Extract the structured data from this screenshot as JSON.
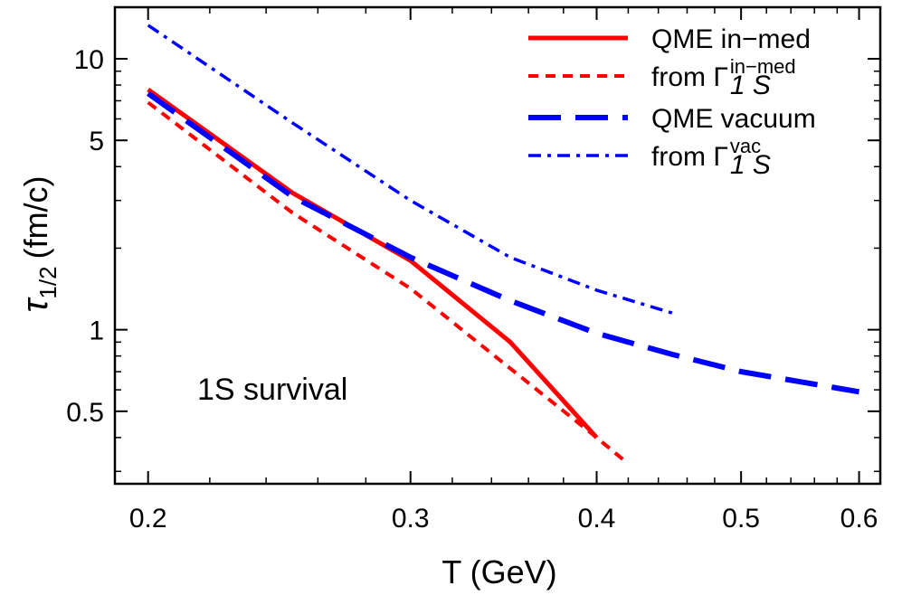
{
  "chart_data": {
    "type": "line",
    "title": "",
    "xlabel": "T (GeV)",
    "ylabel": {
      "symbol": "τ",
      "subscript": "1/2",
      "unit": "(fm/c)"
    },
    "xscale": "log",
    "yscale": "log",
    "xlim": [
      0.19,
      0.62
    ],
    "ylim": [
      0.27,
      15.5
    ],
    "x_ticks": [
      {
        "value": 0.2,
        "label": "0.2"
      },
      {
        "value": 0.3,
        "label": "0.3"
      },
      {
        "value": 0.4,
        "label": "0.4"
      },
      {
        "value": 0.5,
        "label": "0.5"
      },
      {
        "value": 0.6,
        "label": "0.6"
      }
    ],
    "y_ticks": [
      {
        "value": 0.5,
        "label": "0.5"
      },
      {
        "value": 1,
        "label": "1"
      },
      {
        "value": 5,
        "label": "5"
      },
      {
        "value": 10,
        "label": "10"
      }
    ],
    "grid": false,
    "legend_position": "top-right",
    "annotation": "1S survival",
    "series": [
      {
        "name": "QME in−med",
        "legend": {
          "text": "QME in−med"
        },
        "color": "#ff0000",
        "style": "solid",
        "points": [
          [
            0.2,
            7.7
          ],
          [
            0.25,
            3.2
          ],
          [
            0.3,
            1.8
          ],
          [
            0.35,
            0.9
          ],
          [
            0.4,
            0.4
          ]
        ]
      },
      {
        "name": "from Γ1S in−med",
        "legend": {
          "text": "from Γ",
          "sub": "1 S",
          "sup": "in−med"
        },
        "color": "#ff0000",
        "style": "dashed",
        "points": [
          [
            0.2,
            6.9
          ],
          [
            0.25,
            2.7
          ],
          [
            0.3,
            1.42
          ],
          [
            0.35,
            0.72
          ],
          [
            0.4,
            0.4
          ],
          [
            0.42,
            0.32
          ]
        ]
      },
      {
        "name": "QME vacuum",
        "legend": {
          "text": "QME vacuum"
        },
        "color": "#0000ff",
        "style": "longdash",
        "points": [
          [
            0.2,
            7.45
          ],
          [
            0.25,
            3.1
          ],
          [
            0.3,
            1.85
          ],
          [
            0.35,
            1.28
          ],
          [
            0.4,
            0.97
          ],
          [
            0.45,
            0.81
          ],
          [
            0.5,
            0.7
          ],
          [
            0.6,
            0.59
          ]
        ]
      },
      {
        "name": "from Γ1S vac",
        "legend": {
          "text": "from Γ",
          "sub": "1 S",
          "sup": "vac"
        },
        "color": "#0000ff",
        "style": "dotdash",
        "points": [
          [
            0.2,
            13.3
          ],
          [
            0.25,
            5.8
          ],
          [
            0.3,
            3.0
          ],
          [
            0.35,
            1.85
          ],
          [
            0.4,
            1.4
          ],
          [
            0.45,
            1.15
          ]
        ]
      }
    ]
  }
}
